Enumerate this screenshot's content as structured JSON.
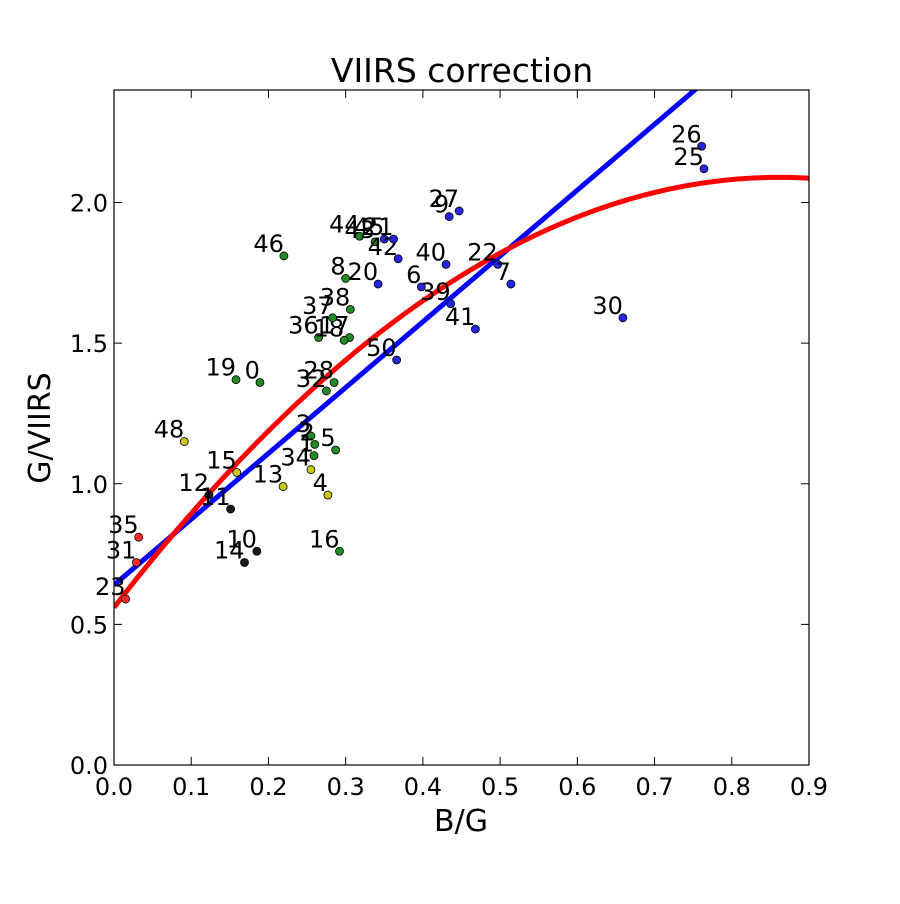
{
  "chart_data": {
    "type": "scatter",
    "title": "VIIRS correction",
    "xlabel": "B/G",
    "ylabel": "G/VIIRS",
    "xlim": [
      0.0,
      0.9
    ],
    "ylim": [
      0.0,
      2.4
    ],
    "x_ticks": [
      "0.0",
      "0.1",
      "0.2",
      "0.3",
      "0.4",
      "0.5",
      "0.6",
      "0.7",
      "0.8",
      "0.9"
    ],
    "y_ticks": [
      "0.0",
      "0.5",
      "1.0",
      "1.5",
      "2.0"
    ],
    "grid": false,
    "legend": false,
    "colors": {
      "linear_fit": "#0000ff",
      "quadratic_fit": "#ff0000",
      "red": "#ff2a2a",
      "black": "#1a1a1a",
      "yellow": "#c8c81e",
      "green": "#228b22",
      "blue": "#2626e6"
    },
    "points": [
      {
        "label": "23",
        "x": 0.015,
        "y": 0.59,
        "color": "red"
      },
      {
        "label": "31",
        "x": 0.029,
        "y": 0.72,
        "color": "red"
      },
      {
        "label": "35",
        "x": 0.032,
        "y": 0.81,
        "color": "red"
      },
      {
        "label": "48",
        "x": 0.091,
        "y": 1.15,
        "color": "yellow"
      },
      {
        "label": "12",
        "x": 0.123,
        "y": 0.96,
        "color": "black"
      },
      {
        "label": "11",
        "x": 0.151,
        "y": 0.91,
        "color": "black"
      },
      {
        "label": "15",
        "x": 0.159,
        "y": 1.04,
        "color": "yellow"
      },
      {
        "label": "19",
        "x": 0.158,
        "y": 1.37,
        "color": "green"
      },
      {
        "label": "0",
        "x": 0.189,
        "y": 1.36,
        "color": "green"
      },
      {
        "label": "10",
        "x": 0.185,
        "y": 0.76,
        "color": "black"
      },
      {
        "label": "14",
        "x": 0.169,
        "y": 0.72,
        "color": "black"
      },
      {
        "label": "13",
        "x": 0.219,
        "y": 0.99,
        "color": "yellow"
      },
      {
        "label": "46",
        "x": 0.22,
        "y": 1.81,
        "color": "green"
      },
      {
        "label": "3",
        "x": 0.255,
        "y": 1.17,
        "color": "green"
      },
      {
        "label": "2",
        "x": 0.26,
        "y": 1.14,
        "color": "green"
      },
      {
        "label": "1",
        "x": 0.259,
        "y": 1.1,
        "color": "green"
      },
      {
        "label": "34",
        "x": 0.255,
        "y": 1.05,
        "color": "yellow"
      },
      {
        "label": "4",
        "x": 0.277,
        "y": 0.96,
        "color": "yellow"
      },
      {
        "label": "5",
        "x": 0.287,
        "y": 1.12,
        "color": "green"
      },
      {
        "label": "16",
        "x": 0.292,
        "y": 0.76,
        "color": "green"
      },
      {
        "label": "32",
        "x": 0.275,
        "y": 1.33,
        "color": "green"
      },
      {
        "label": "28",
        "x": 0.285,
        "y": 1.36,
        "color": "green"
      },
      {
        "label": "36",
        "x": 0.265,
        "y": 1.52,
        "color": "green"
      },
      {
        "label": "17",
        "x": 0.305,
        "y": 1.52,
        "color": "green"
      },
      {
        "label": "18",
        "x": 0.298,
        "y": 1.51,
        "color": "green"
      },
      {
        "label": "37",
        "x": 0.283,
        "y": 1.59,
        "color": "green"
      },
      {
        "label": "38",
        "x": 0.306,
        "y": 1.62,
        "color": "green"
      },
      {
        "label": "8",
        "x": 0.3,
        "y": 1.73,
        "color": "green"
      },
      {
        "label": "20",
        "x": 0.342,
        "y": 1.71,
        "color": "blue"
      },
      {
        "label": "44",
        "x": 0.318,
        "y": 1.88,
        "color": "green"
      },
      {
        "label": "43",
        "x": 0.338,
        "y": 1.86,
        "color": "green"
      },
      {
        "label": "45",
        "x": 0.35,
        "y": 1.87,
        "color": "blue"
      },
      {
        "label": "42",
        "x": 0.368,
        "y": 1.8,
        "color": "blue"
      },
      {
        "label": "21",
        "x": 0.362,
        "y": 1.87,
        "color": "blue"
      },
      {
        "label": "6",
        "x": 0.398,
        "y": 1.7,
        "color": "blue"
      },
      {
        "label": "40",
        "x": 0.43,
        "y": 1.78,
        "color": "blue"
      },
      {
        "label": "9",
        "x": 0.434,
        "y": 1.95,
        "color": "blue"
      },
      {
        "label": "27",
        "x": 0.447,
        "y": 1.97,
        "color": "blue"
      },
      {
        "label": "22",
        "x": 0.497,
        "y": 1.78,
        "color": "blue"
      },
      {
        "label": "7",
        "x": 0.514,
        "y": 1.71,
        "color": "blue"
      },
      {
        "label": "39",
        "x": 0.436,
        "y": 1.64,
        "color": "blue"
      },
      {
        "label": "41",
        "x": 0.468,
        "y": 1.55,
        "color": "blue"
      },
      {
        "label": "50",
        "x": 0.366,
        "y": 1.44,
        "color": "blue"
      },
      {
        "label": "30",
        "x": 0.659,
        "y": 1.59,
        "color": "blue"
      },
      {
        "label": "26",
        "x": 0.761,
        "y": 2.2,
        "color": "blue"
      },
      {
        "label": "25",
        "x": 0.764,
        "y": 2.12,
        "color": "blue"
      }
    ],
    "fits": [
      {
        "type": "linear",
        "color": "linear_fit",
        "intercept": 0.64,
        "slope": 2.34
      },
      {
        "type": "quadratic",
        "color": "quadratic_fit",
        "a": -2.06,
        "b": 3.55,
        "c": 0.56
      }
    ]
  }
}
